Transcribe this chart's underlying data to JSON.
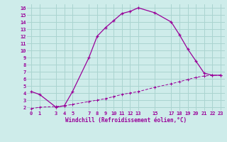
{
  "xlabel": "Windchill (Refroidissement éolien,°C)",
  "bg_color": "#ceecea",
  "line_color": "#990099",
  "grid_color": "#aad4d0",
  "curve1_x": [
    0,
    1,
    3,
    4,
    5,
    7,
    8,
    9,
    10,
    11,
    12,
    13,
    15,
    17,
    18,
    19,
    20,
    21,
    22,
    23
  ],
  "curve1_y": [
    4.2,
    3.8,
    2.0,
    2.2,
    4.2,
    9.0,
    12.0,
    13.2,
    14.2,
    15.2,
    15.5,
    16.0,
    15.3,
    14.0,
    12.2,
    10.2,
    8.5,
    6.8,
    6.5,
    6.5
  ],
  "curve2_x": [
    0,
    1,
    3,
    4,
    5,
    7,
    8,
    9,
    10,
    11,
    12,
    13,
    15,
    17,
    18,
    19,
    20,
    21,
    22,
    23
  ],
  "curve2_y": [
    1.8,
    2.0,
    2.1,
    2.2,
    2.4,
    2.8,
    3.0,
    3.2,
    3.5,
    3.8,
    4.0,
    4.2,
    4.8,
    5.3,
    5.6,
    5.9,
    6.2,
    6.4,
    6.5,
    6.5
  ],
  "xlim": [
    -0.5,
    23.5
  ],
  "ylim": [
    1.5,
    16.5
  ],
  "xticks": [
    0,
    1,
    3,
    4,
    5,
    7,
    8,
    9,
    10,
    11,
    12,
    13,
    15,
    17,
    18,
    19,
    20,
    21,
    22,
    23
  ],
  "yticks": [
    2,
    3,
    4,
    5,
    6,
    7,
    8,
    9,
    10,
    11,
    12,
    13,
    14,
    15,
    16
  ]
}
